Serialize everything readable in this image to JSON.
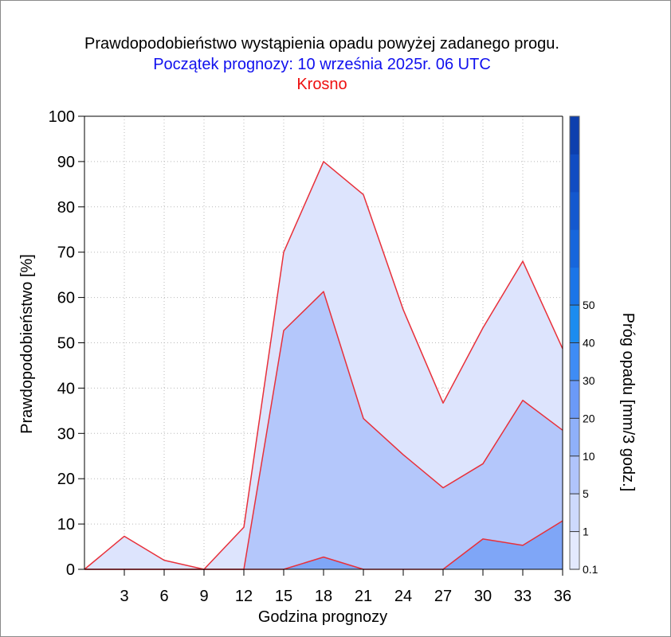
{
  "titles": {
    "main": "Prawdopodobieństwo wystąpienia opadu powyżej zadanego progu.",
    "forecast_start": "Początek prognozy: 10 września 2025r. 06 UTC",
    "location": "Krosno"
  },
  "colors": {
    "title_main": "#000000",
    "title_start": "#1010ee",
    "title_location": "#ee1010",
    "series_line": "#e8303a",
    "grid": "#b8b8b8"
  },
  "chart_data": {
    "type": "area",
    "title": "Prawdopodobieństwo wystąpienia opadu powyżej zadanego progu.",
    "xlabel": "Godzina prognozy",
    "ylabel": "Prawdopodobieństwo [%]",
    "x": [
      0,
      3,
      6,
      9,
      12,
      15,
      18,
      21,
      24,
      27,
      30,
      33,
      36
    ],
    "xticks": [
      3,
      6,
      9,
      12,
      15,
      18,
      21,
      24,
      27,
      30,
      33,
      36
    ],
    "xlim": [
      0,
      36
    ],
    "yticks": [
      0,
      10,
      20,
      30,
      40,
      50,
      60,
      70,
      80,
      90,
      100
    ],
    "ylim": [
      0,
      100
    ],
    "grid": true,
    "series": [
      {
        "threshold": 0.1,
        "color": "#dde4fd",
        "values": [
          0,
          7.3,
          2,
          0,
          9.3,
          70,
          90,
          82.7,
          57.3,
          36.7,
          53.3,
          68,
          48.7
        ]
      },
      {
        "threshold": 1,
        "color": "#b4c7fb",
        "values": [
          0,
          0,
          0,
          0,
          0,
          52.7,
          61.3,
          33.3,
          25.3,
          18,
          23.3,
          37.3,
          30.7
        ]
      },
      {
        "threshold": 5,
        "color": "#7fa6f7",
        "values": [
          0,
          0,
          0,
          0,
          0,
          0,
          2.7,
          0,
          0,
          0,
          6.7,
          5.3,
          10.7
        ]
      }
    ],
    "colorbar": {
      "label": "Próg opadu [mm/3 godz.]",
      "bands": [
        {
          "color": "#e3e9fd"
        },
        {
          "color": "#cdd9fc"
        },
        {
          "color": "#b0c4fb"
        },
        {
          "color": "#8fb0f9"
        },
        {
          "color": "#6b9af8"
        },
        {
          "color": "#3e8cf5"
        },
        {
          "color": "#1c8cf0"
        },
        {
          "color": "#1a75e8"
        },
        {
          "color": "#1666dc"
        },
        {
          "color": "#1458cf"
        },
        {
          "color": "#114cc2"
        },
        {
          "color": "#0d3fae"
        }
      ],
      "ticks": [
        "0.1",
        "1",
        "5",
        "10",
        "20",
        "30",
        "40",
        "50"
      ]
    }
  }
}
